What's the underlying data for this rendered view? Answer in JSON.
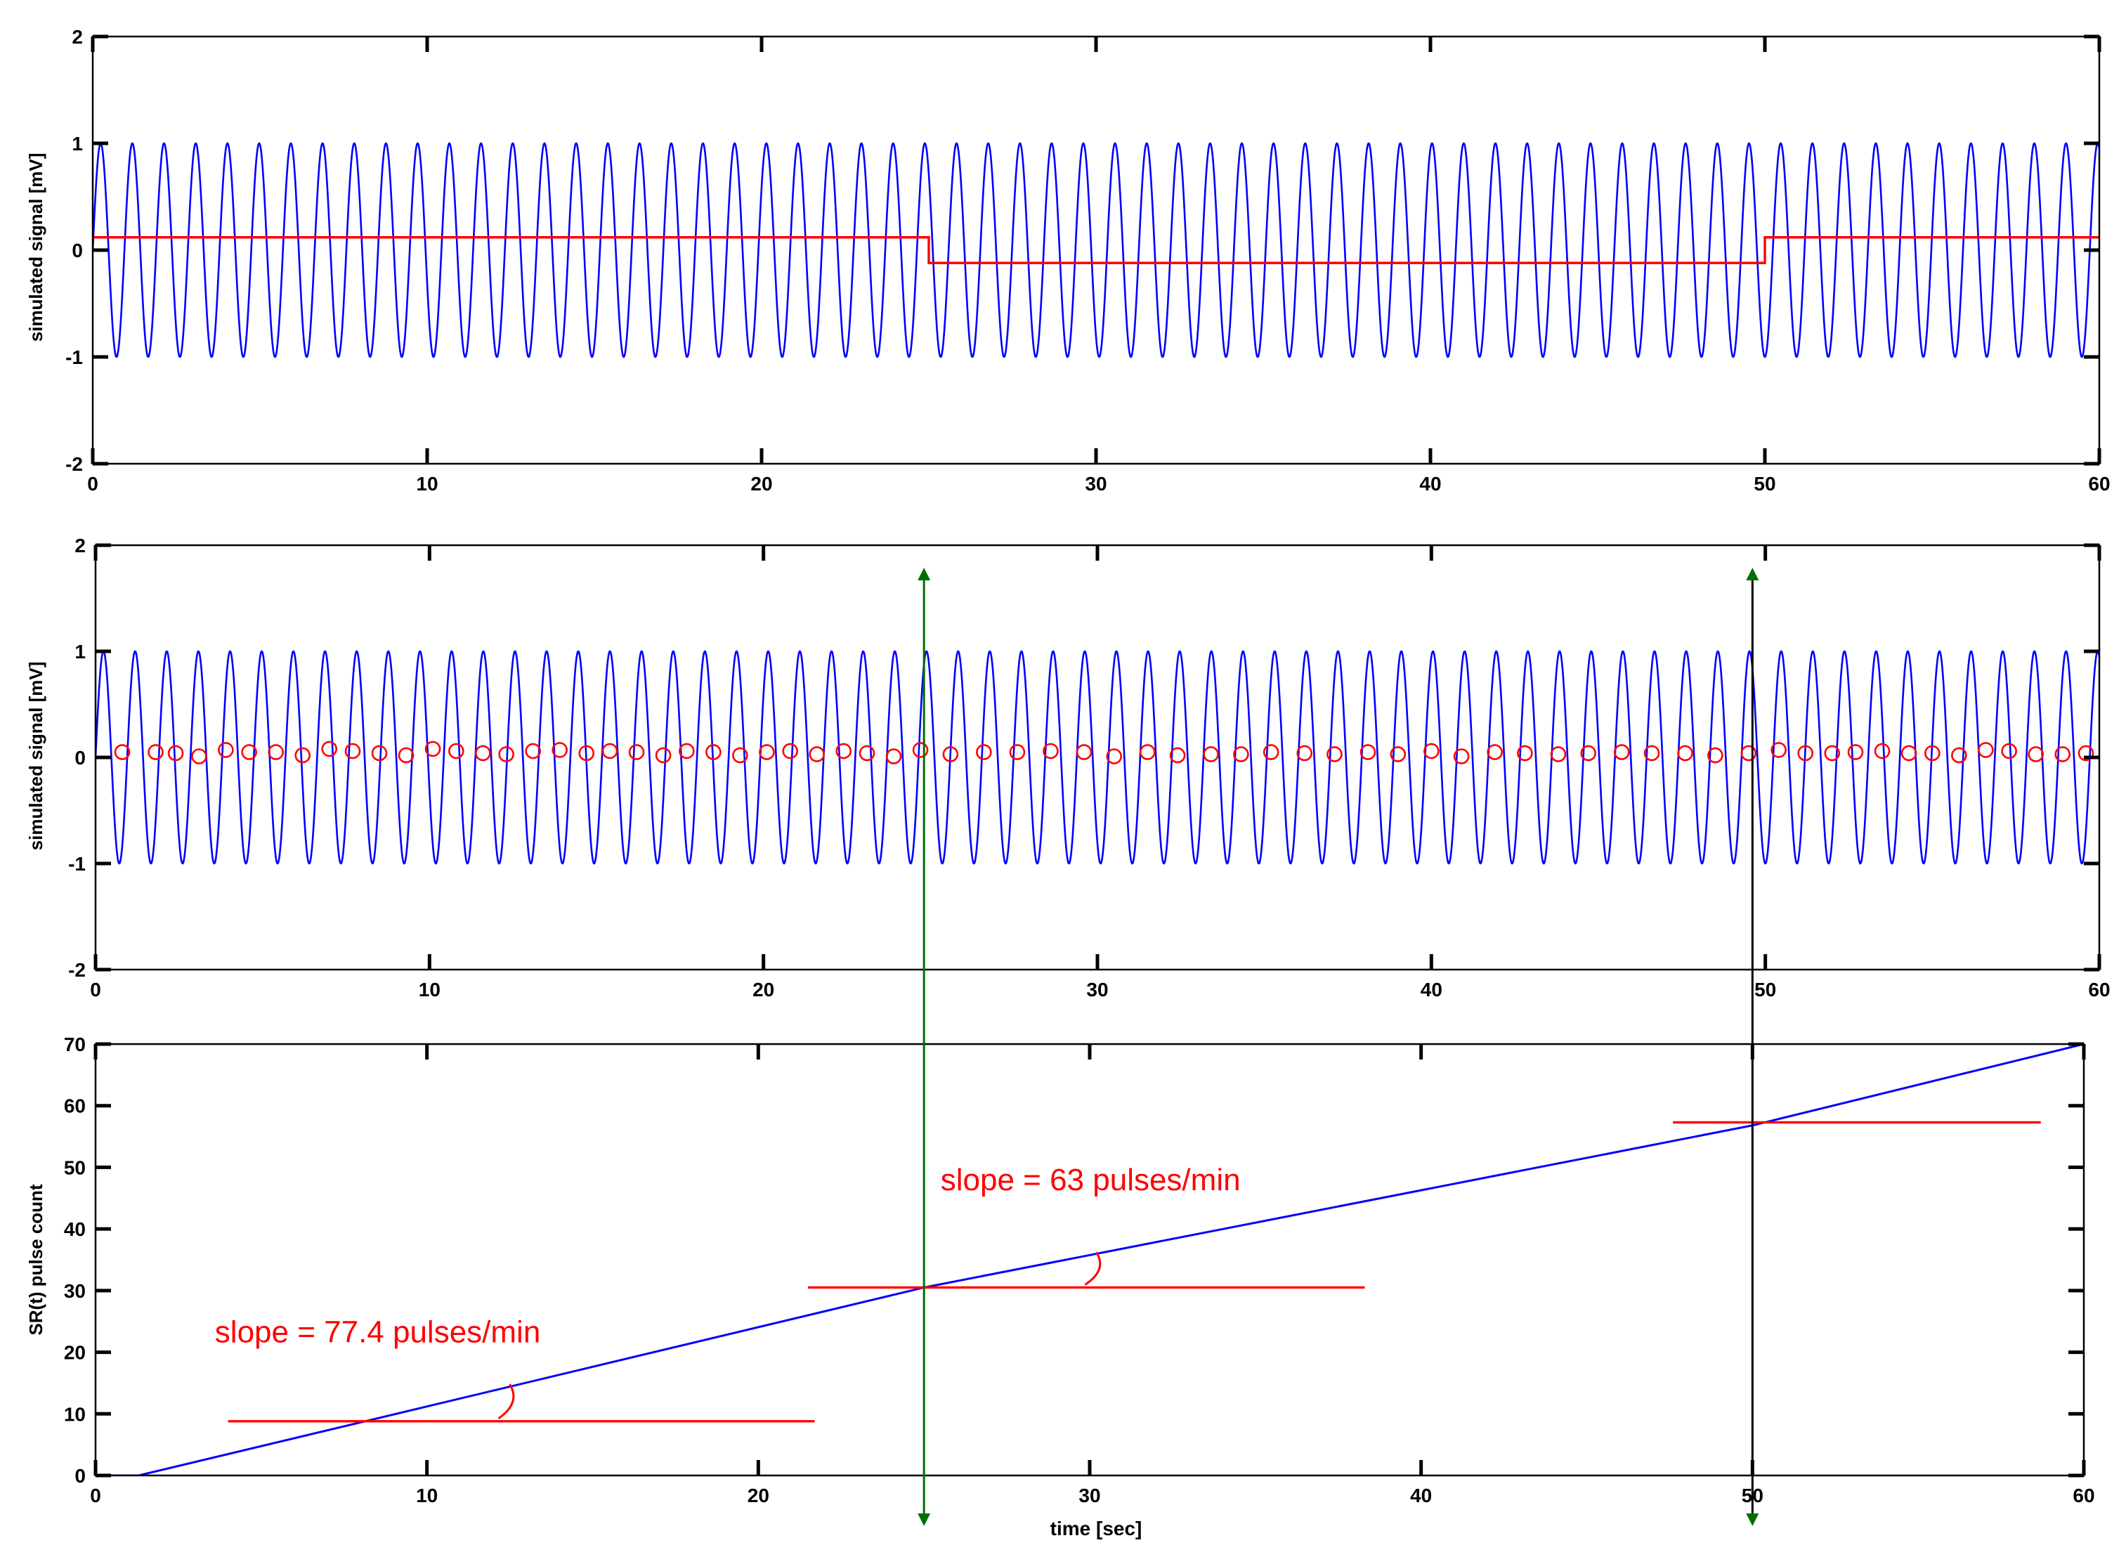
{
  "chart_data": [
    {
      "type": "line",
      "panel": "top",
      "xlabel": "",
      "ylabel": "simulated signal [mV]",
      "xlim": [
        0,
        60
      ],
      "ylim": [
        -2,
        2
      ],
      "xticks": [
        0,
        10,
        20,
        30,
        40,
        50,
        60
      ],
      "yticks": [
        -2,
        -1,
        0,
        1,
        2
      ],
      "series": [
        {
          "kind": "sine",
          "color": "#0000ff",
          "amplitude": 1,
          "frequency_hz": 1.055,
          "t_start": 0,
          "t_end": 60
        },
        {
          "kind": "step",
          "color": "#ff0000",
          "x": [
            0,
            25,
            25,
            50,
            50,
            60
          ],
          "y": [
            0.12,
            0.12,
            -0.12,
            -0.12,
            0.12,
            0.12
          ]
        }
      ]
    },
    {
      "type": "line",
      "panel": "middle",
      "xlabel": "",
      "ylabel": "simulated signal [mV]",
      "xlim": [
        0,
        60
      ],
      "ylim": [
        -2,
        2
      ],
      "xticks": [
        0,
        10,
        20,
        30,
        40,
        50,
        60
      ],
      "yticks": [
        -2,
        -1,
        0,
        1,
        2
      ],
      "series": [
        {
          "kind": "sine",
          "color": "#0000ff",
          "amplitude": 1,
          "frequency_hz": 1.055,
          "t_start": 0,
          "t_end": 60
        },
        {
          "kind": "markers",
          "color": "#ff0000",
          "marker": "circle",
          "x": [
            0.8,
            1.8,
            2.4,
            3.1,
            3.9,
            4.6,
            5.4,
            6.2,
            7.0,
            7.7,
            8.5,
            9.3,
            10.1,
            10.8,
            11.6,
            12.3,
            13.1,
            13.9,
            14.7,
            15.4,
            16.2,
            17.0,
            17.7,
            18.5,
            19.3,
            20.1,
            20.8,
            21.6,
            22.4,
            23.1,
            23.9,
            24.7,
            25.6,
            26.6,
            27.6,
            28.6,
            29.6,
            30.5,
            31.5,
            32.4,
            33.4,
            34.3,
            35.2,
            36.2,
            37.1,
            38.1,
            39.0,
            40.0,
            40.9,
            41.9,
            42.8,
            43.8,
            44.7,
            45.7,
            46.6,
            47.6,
            48.5,
            49.5,
            50.4,
            51.2,
            52.0,
            52.7,
            53.5,
            54.3,
            55.0,
            55.8,
            56.6,
            57.3,
            58.1,
            58.9,
            59.6
          ],
          "y": [
            0.05,
            0.05,
            0.04,
            0.01,
            0.07,
            0.05,
            0.05,
            0.02,
            0.08,
            0.06,
            0.04,
            0.02,
            0.08,
            0.06,
            0.04,
            0.03,
            0.06,
            0.07,
            0.04,
            0.06,
            0.05,
            0.02,
            0.06,
            0.05,
            0.02,
            0.05,
            0.06,
            0.03,
            0.06,
            0.04,
            0.01,
            0.07,
            0.03,
            0.05,
            0.05,
            0.06,
            0.05,
            0.01,
            0.05,
            0.02,
            0.03,
            0.03,
            0.05,
            0.04,
            0.03,
            0.05,
            0.03,
            0.06,
            0.01,
            0.05,
            0.04,
            0.03,
            0.04,
            0.05,
            0.04,
            0.04,
            0.02,
            0.04,
            0.07,
            0.04,
            0.04,
            0.05,
            0.06,
            0.04,
            0.04,
            0.02,
            0.07,
            0.06,
            0.03,
            0.03,
            0.04
          ]
        }
      ]
    },
    {
      "type": "line",
      "panel": "bottom",
      "xlabel": "time [sec]",
      "ylabel": "SR(t) pulse count",
      "xlim": [
        0,
        60
      ],
      "ylim": [
        0,
        70
      ],
      "xticks": [
        0,
        10,
        20,
        30,
        40,
        50,
        60
      ],
      "yticks": [
        0,
        10,
        20,
        30,
        40,
        50,
        60,
        70
      ],
      "series": [
        {
          "kind": "line",
          "color": "#0000ff",
          "x": [
            0,
            1.3,
            25,
            50,
            60
          ],
          "y": [
            0,
            0,
            30.5,
            56.8,
            70
          ]
        },
        {
          "kind": "hline",
          "color": "#ff0000",
          "x": [
            4,
            21.7
          ],
          "y": 8.8
        },
        {
          "kind": "hline",
          "color": "#ff0000",
          "x": [
            21.5,
            38.3
          ],
          "y": 30.5
        },
        {
          "kind": "hline",
          "color": "#ff0000",
          "x": [
            47.6,
            58.7
          ],
          "y": 57.3
        }
      ],
      "annotations": [
        {
          "text": "slope = 77.4 pulses/min",
          "x": 3.6,
          "y": 21.6
        },
        {
          "text": "slope = 63 pulses/min",
          "x": 25.5,
          "y": 46.3
        }
      ],
      "markers_vertical": [
        {
          "x": 25,
          "color": "#007000"
        },
        {
          "x": 50,
          "color": "#000000"
        }
      ]
    }
  ]
}
